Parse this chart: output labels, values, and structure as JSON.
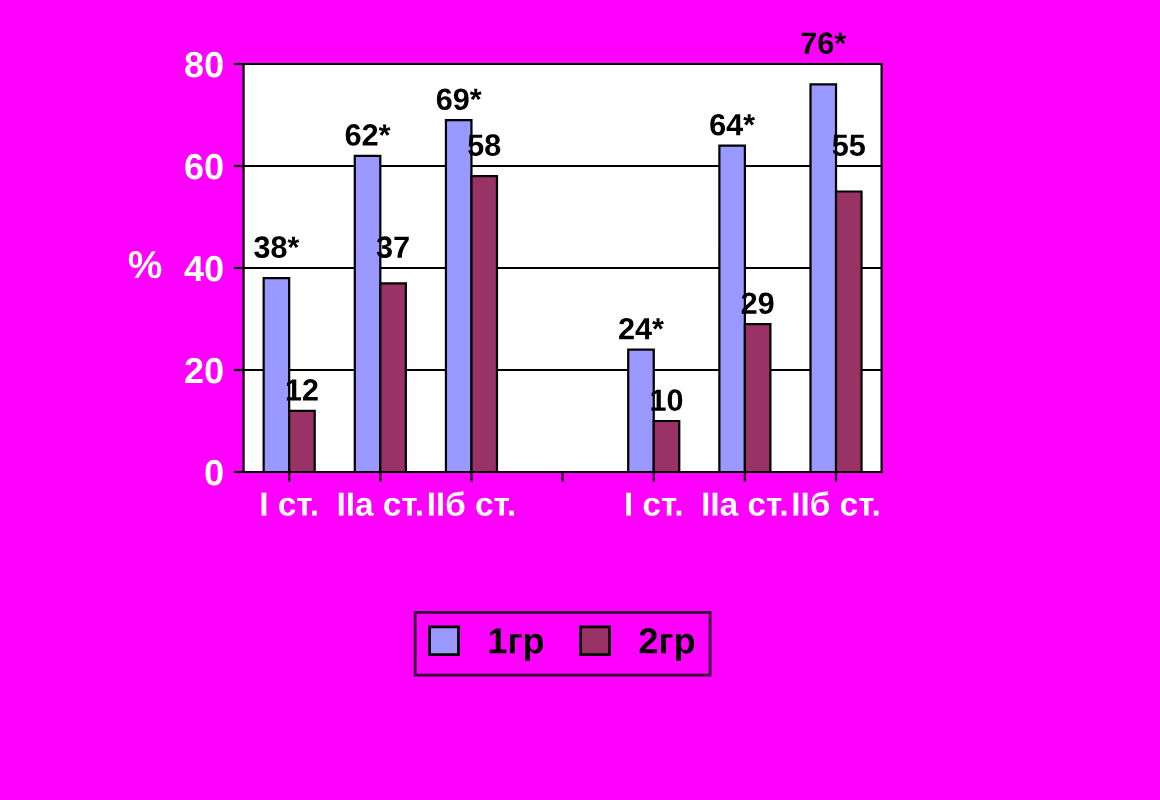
{
  "chart_data": {
    "type": "bar",
    "ylabel": "%",
    "categories": [
      "I ст.",
      "IIа ст.",
      "IIб ст.",
      null,
      "I ст.",
      "IIа ст.",
      "IIб ст."
    ],
    "series": [
      {
        "name": "1гр",
        "color": "#9999ff",
        "values": [
          38,
          62,
          69,
          null,
          24,
          64,
          76
        ],
        "value_labels": [
          "38*",
          "62*",
          "69*",
          null,
          "24*",
          "64*",
          "76*"
        ]
      },
      {
        "name": "2гр",
        "color": "#993366",
        "values": [
          12,
          37,
          58,
          null,
          10,
          29,
          55
        ],
        "value_labels": [
          "12",
          "37",
          "58",
          null,
          "10",
          "29",
          "55"
        ]
      }
    ],
    "ylim": [
      0,
      80
    ],
    "yticks": [
      0,
      20,
      40,
      60,
      80
    ],
    "grid": "y",
    "legend": "bottom"
  }
}
